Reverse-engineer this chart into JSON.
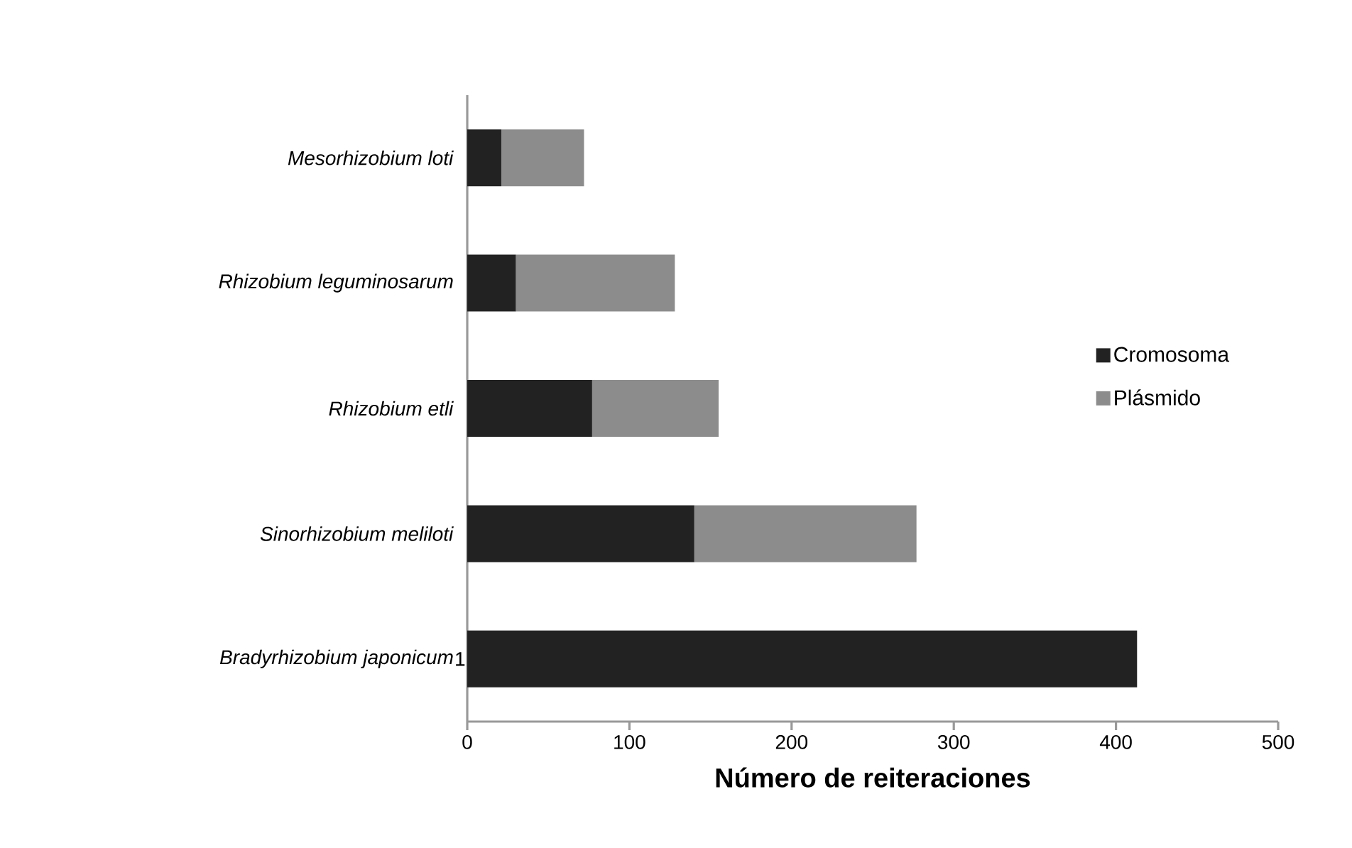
{
  "chart_data": {
    "type": "bar",
    "orientation": "horizontal",
    "stacked": true,
    "categories": [
      "*Mesorhizobium loti*",
      "*Rhizobium leguminosarum*",
      "*Rhizobium etli*",
      "*Sinorhizobium meliloti*",
      "*Bradyrhizobium japonicum*"
    ],
    "series": [
      {
        "name": "Cromosoma",
        "color": "#222222",
        "values": [
          21,
          30,
          77,
          140,
          413
        ]
      },
      {
        "name": "Plásmido",
        "color": "#8c8c8c",
        "values": [
          51,
          98,
          78,
          137,
          0
        ]
      }
    ],
    "xlabel": "Número de reiteraciones",
    "xlim": [
      0,
      500
    ],
    "xticks": [
      0,
      100,
      200,
      300,
      400,
      500
    ],
    "legend": "right",
    "grid": false,
    "annotations": [
      "1"
    ]
  }
}
